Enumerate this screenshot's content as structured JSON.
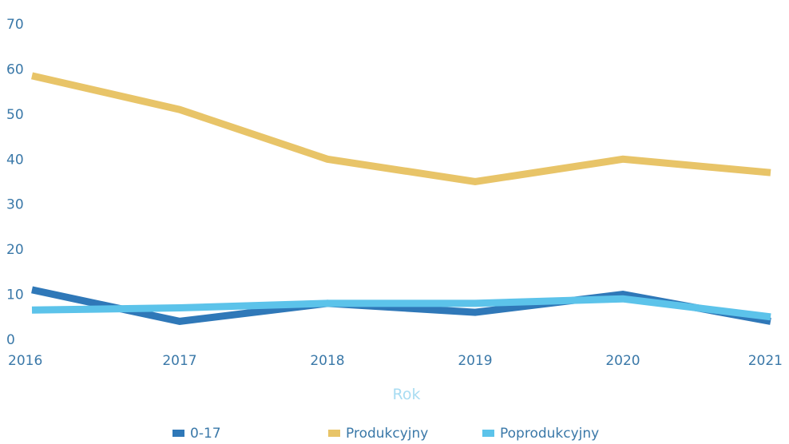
{
  "chart_data": {
    "type": "line",
    "xlabel": "Rok",
    "ylabel": "",
    "x": [
      "2016",
      "2017",
      "2018",
      "2019",
      "2020",
      "2021"
    ],
    "y_ticks": [
      "0",
      "10",
      "20",
      "30",
      "40",
      "50",
      "60",
      "70"
    ],
    "ylim": [
      0,
      70
    ],
    "grid": false,
    "legend_position": "bottom",
    "series": [
      {
        "name": "0-17",
        "color": "#2f78b8",
        "values": [
          11,
          4,
          8,
          6,
          10,
          4
        ]
      },
      {
        "name": "Produkcyjny",
        "color": "#e8c468",
        "values": [
          58.5,
          51,
          40,
          35,
          40,
          37
        ]
      },
      {
        "name": "Poprodukcyjny",
        "color": "#5cc3ea",
        "values": [
          6.5,
          7,
          8,
          8,
          9,
          5
        ]
      }
    ]
  }
}
